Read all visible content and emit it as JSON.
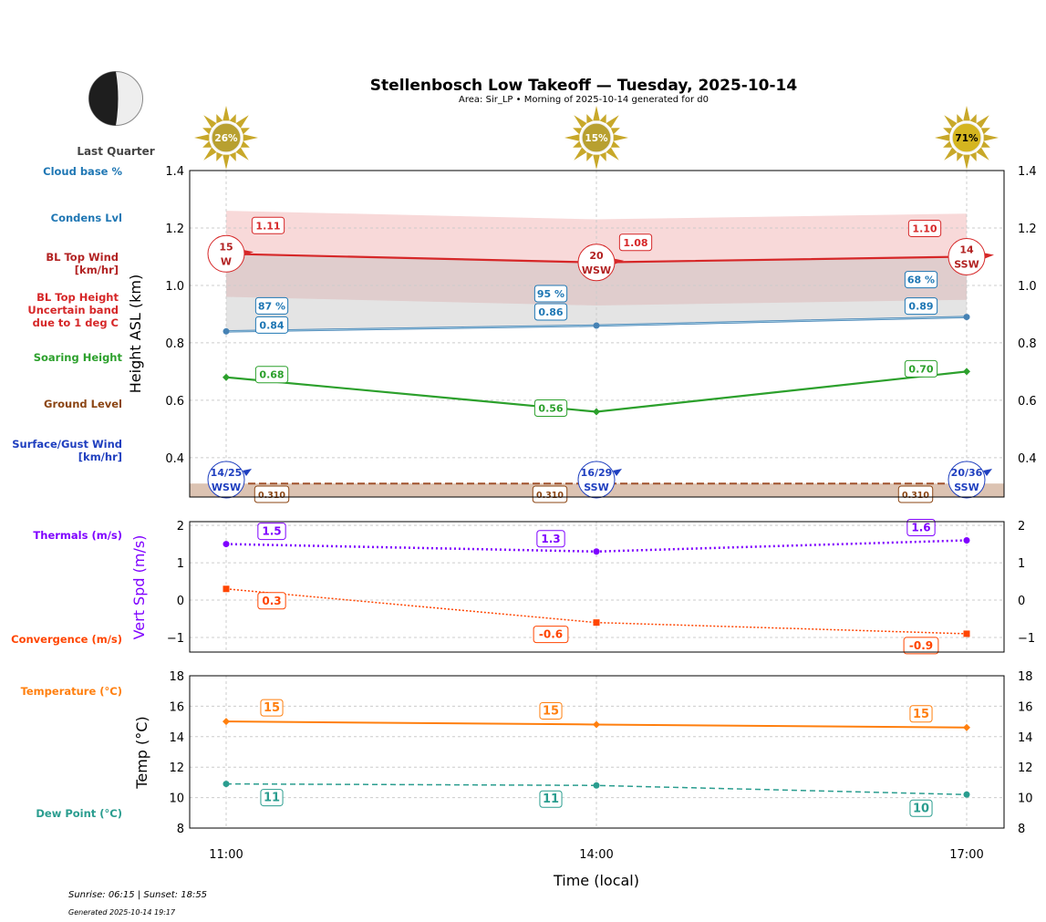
{
  "title": "Stellenbosch Low Takeoff — Tuesday, 2025-10-14",
  "subtitle": "Area: Sir_LP • Morning of 2025-10-14 generated for d0",
  "moon": {
    "phase": "Last Quarter",
    "icon": "moon-last-quarter-icon"
  },
  "sun_icons": {
    "icon": "sun-icon",
    "labels": [
      "26%",
      "15%",
      "71%"
    ]
  },
  "footer": {
    "sun": "Sunrise: 06:15 | Sunset: 18:55",
    "generated": "Generated 2025-10-14 19:17"
  },
  "colors": {
    "bl_top": "#d62728",
    "cloud": "#1f77b4",
    "soaring": "#2ca02c",
    "ground": "#8b4513",
    "surface_wind": "#1f3fbf",
    "thermals": "#7f00ff",
    "convergence": "#ff4500",
    "temperature": "#ff7f0e",
    "dew_point": "#2a9d8f"
  },
  "side_labels": {
    "cloud_base": "Cloud base %",
    "condens": "Condens Lvl",
    "bl_wind": [
      "BL Top Wind",
      "[km/hr]"
    ],
    "bl_height": [
      "BL Top Height",
      "Uncertain band",
      "due to 1 deg C"
    ],
    "soaring": "Soaring Height",
    "ground": "Ground Level",
    "surface_wind": [
      "Surface/Gust Wind",
      "[km/hr]"
    ],
    "thermals": "Thermals (m/s)",
    "convergence": "Convergence (m/s)",
    "temperature": "Temperature (°C)",
    "dew_point": "Dew Point (°C)"
  },
  "chart_data": [
    {
      "type": "line",
      "ylabel": "Height ASL (km)",
      "x": [
        "11:00",
        "14:00",
        "17:00"
      ],
      "ylim": [
        0.263,
        1.4
      ],
      "yticks": [
        "0.4",
        "0.6",
        "0.8",
        "1.0",
        "1.2",
        "1.4"
      ],
      "grid": true,
      "series": [
        {
          "key": "bl_top",
          "values": [
            1.11,
            1.08,
            1.1
          ],
          "labels": [
            "1.11",
            "1.08",
            "1.10"
          ],
          "uncertainty": 0.15
        },
        {
          "key": "condens",
          "values": [
            0.84,
            0.86,
            0.89
          ],
          "labels": [
            "0.84",
            "0.86",
            "0.89"
          ]
        },
        {
          "key": "cloud_pct",
          "values": [
            87,
            95,
            68
          ],
          "labels": [
            "87 %",
            "95 %",
            "68 %"
          ]
        },
        {
          "key": "soaring",
          "values": [
            0.68,
            0.56,
            0.7
          ],
          "labels": [
            "0.68",
            "0.56",
            "0.70"
          ]
        },
        {
          "key": "ground",
          "values": [
            0.31,
            0.31,
            0.31
          ],
          "labels": [
            "0.310",
            "0.310",
            "0.310"
          ]
        }
      ],
      "bl_wind": [
        {
          "speed": "15",
          "dir": "W"
        },
        {
          "speed": "20",
          "dir": "WSW"
        },
        {
          "speed": "14",
          "dir": "SSW"
        }
      ],
      "surface_wind": [
        {
          "speed": "14/25",
          "dir": "WSW"
        },
        {
          "speed": "16/29",
          "dir": "SSW"
        },
        {
          "speed": "20/36",
          "dir": "SSW"
        }
      ]
    },
    {
      "type": "line",
      "ylabel": "Vert Spd (m/s)",
      "x": [
        "11:00",
        "14:00",
        "17:00"
      ],
      "ylim": [
        -1.39,
        2.1
      ],
      "yticks": [
        "−1",
        "0",
        "1",
        "2"
      ],
      "tickvals": [
        -1,
        0,
        1,
        2
      ],
      "series": [
        {
          "key": "thermals",
          "values": [
            1.5,
            1.3,
            1.6
          ],
          "labels": [
            "1.5",
            "1.3",
            "1.6"
          ]
        },
        {
          "key": "convergence",
          "values": [
            0.3,
            -0.6,
            -0.9
          ],
          "labels": [
            "0.3",
            "-0.6",
            "-0.9"
          ]
        }
      ]
    },
    {
      "type": "line",
      "ylabel": "Temp (°C)",
      "xlabel": "Time (local)",
      "x": [
        "11:00",
        "14:00",
        "17:00"
      ],
      "ylim": [
        8,
        18
      ],
      "yticks": [
        "8",
        "10",
        "12",
        "14",
        "16",
        "18"
      ],
      "tickvals": [
        8,
        10,
        12,
        14,
        16,
        18
      ],
      "series": [
        {
          "key": "temperature",
          "values": [
            15.0,
            14.8,
            14.6
          ],
          "labels": [
            "15",
            "15",
            "15"
          ]
        },
        {
          "key": "dew_point",
          "values": [
            10.9,
            10.8,
            10.2
          ],
          "labels": [
            "11",
            "11",
            "10"
          ]
        }
      ]
    }
  ]
}
